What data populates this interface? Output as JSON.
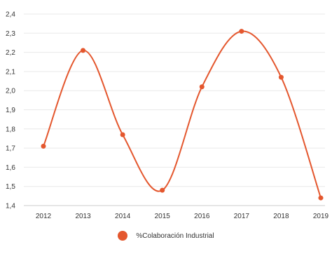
{
  "chart_data": {
    "type": "line",
    "categories": [
      "2012",
      "2013",
      "2014",
      "2015",
      "2016",
      "2017",
      "2018",
      "2019"
    ],
    "series": [
      {
        "name": "%Colaboración Industrial",
        "values": [
          1.71,
          2.21,
          1.77,
          1.48,
          2.02,
          2.31,
          2.07,
          1.44
        ]
      }
    ],
    "yticks": [
      "1,4",
      "1,5",
      "1,6",
      "1,7",
      "1,8",
      "1,9",
      "2,0",
      "2,1",
      "2,2",
      "2,3",
      "2,4"
    ],
    "ylim": [
      1.4,
      2.4
    ],
    "grid": true,
    "smooth": true,
    "legend_position": "bottom",
    "colors": {
      "series": "#e4572e",
      "grid": "#e9e9e9",
      "axis": "#cccccc"
    }
  }
}
